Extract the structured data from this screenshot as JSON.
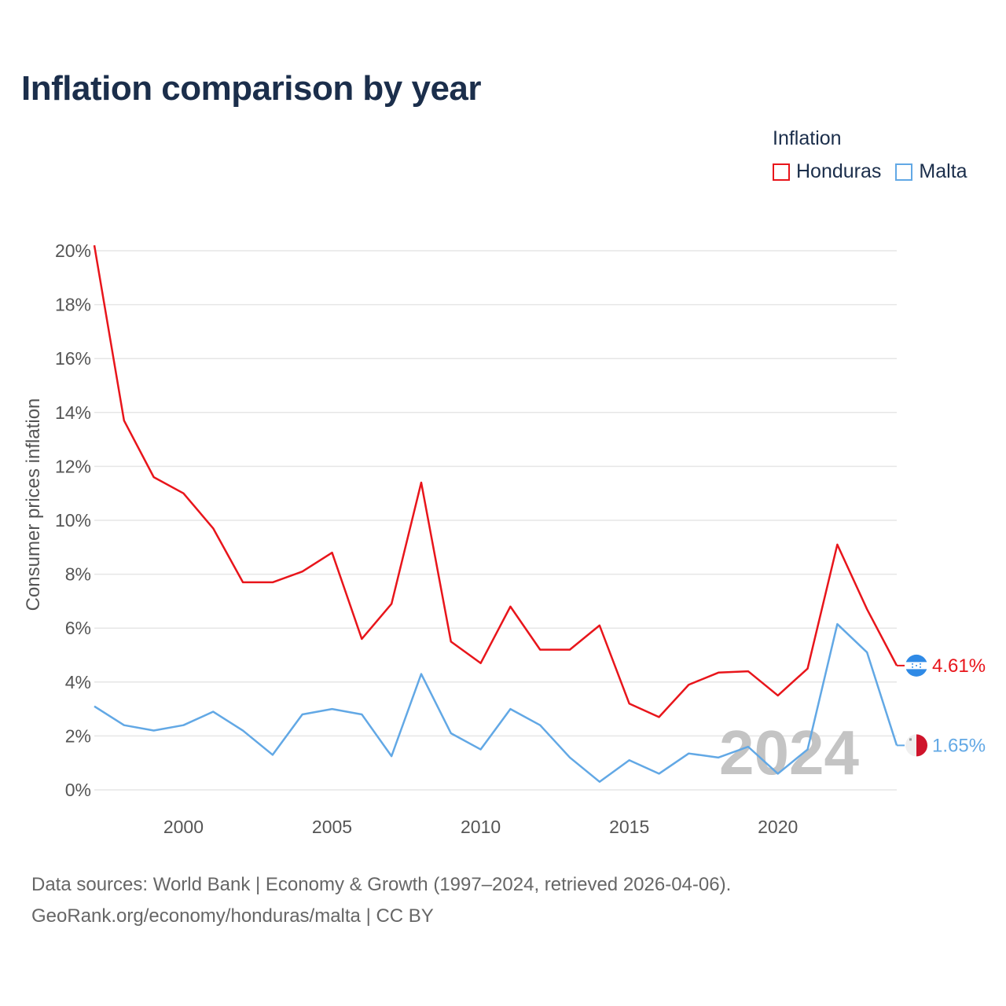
{
  "title": "Inflation comparison by year",
  "legend": {
    "title": "Inflation",
    "items": [
      {
        "label": "Honduras",
        "color": "#e8151b"
      },
      {
        "label": "Malta",
        "color": "#62a8e5"
      }
    ]
  },
  "source": {
    "line1": "Data sources: World Bank | Economy & Growth (1997–2024, retrieved 2026-04-06).",
    "line2": "GeoRank.org/economy/honduras/malta | CC BY"
  },
  "chart_data": {
    "type": "line",
    "title": "Inflation comparison by year",
    "xlabel": "",
    "ylabel": "Consumer prices inflation",
    "xlim": [
      1997,
      2024
    ],
    "ylim": [
      0,
      20
    ],
    "y_ticks": [
      0,
      2,
      4,
      6,
      8,
      10,
      12,
      14,
      16,
      18,
      20
    ],
    "y_tick_labels": [
      "0%",
      "2%",
      "4%",
      "6%",
      "8%",
      "10%",
      "12%",
      "14%",
      "16%",
      "18%",
      "20%"
    ],
    "x_ticks": [
      2000,
      2005,
      2010,
      2015,
      2020
    ],
    "x_tick_labels": [
      "2000",
      "2005",
      "2010",
      "2015",
      "2020"
    ],
    "grid": true,
    "legend_position": "top-right",
    "watermark_year": "2024",
    "x": [
      1997,
      1998,
      1999,
      2000,
      2001,
      2002,
      2003,
      2004,
      2005,
      2006,
      2007,
      2008,
      2009,
      2010,
      2011,
      2012,
      2013,
      2014,
      2015,
      2016,
      2017,
      2018,
      2019,
      2020,
      2021,
      2022,
      2023,
      2024
    ],
    "series": [
      {
        "name": "Honduras",
        "color": "#e8151b",
        "flag": "honduras-flag",
        "end_label": "4.61%",
        "values": [
          20.2,
          13.7,
          11.6,
          11.0,
          9.7,
          7.7,
          7.7,
          8.1,
          8.8,
          5.6,
          6.9,
          11.4,
          5.5,
          4.7,
          6.8,
          5.2,
          5.2,
          6.1,
          3.2,
          2.7,
          3.9,
          4.35,
          4.4,
          3.5,
          4.5,
          9.1,
          6.7,
          4.61
        ]
      },
      {
        "name": "Malta",
        "color": "#62a8e5",
        "flag": "malta-flag",
        "end_label": "1.65%",
        "values": [
          3.1,
          2.4,
          2.2,
          2.4,
          2.9,
          2.2,
          1.3,
          2.8,
          3.0,
          2.8,
          1.25,
          4.3,
          2.1,
          1.5,
          3.0,
          2.4,
          1.2,
          0.3,
          1.1,
          0.6,
          1.35,
          1.2,
          1.6,
          0.6,
          1.5,
          6.15,
          5.1,
          1.65
        ]
      }
    ]
  }
}
